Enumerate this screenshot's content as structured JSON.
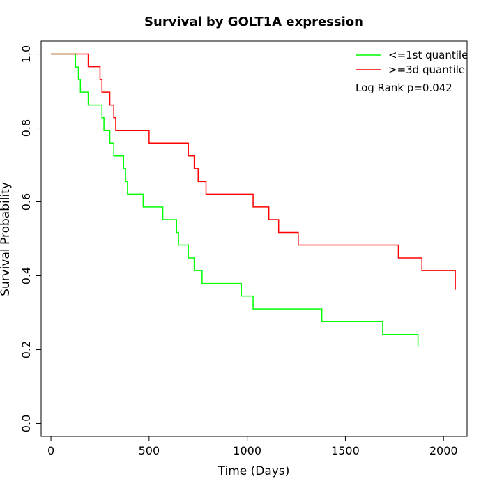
{
  "chart_data": {
    "type": "line",
    "title": "Survival by GOLT1A expression",
    "xlabel": "Time (Days)",
    "ylabel": "Survival Probability",
    "xlim": [
      -50,
      2120
    ],
    "ylim": [
      -0.035,
      1.035
    ],
    "xticks": [
      0,
      500,
      1000,
      1500,
      2000
    ],
    "xtick_labels": [
      "0",
      "500",
      "1000",
      "1500",
      "2000"
    ],
    "yticks": [
      0.0,
      0.2,
      0.4,
      0.6,
      0.8,
      1.0
    ],
    "ytick_labels": [
      "0.0",
      "0.2",
      "0.4",
      "0.6",
      "0.8",
      "1.0"
    ],
    "grid": false,
    "legend_position": "top-right",
    "annotation": "Log Rank p=0.042",
    "series": [
      {
        "name": "<=1st quantile",
        "color": "#00ff00",
        "x": [
          0,
          125,
          140,
          150,
          190,
          260,
          270,
          300,
          320,
          370,
          380,
          390,
          470,
          570,
          640,
          650,
          700,
          730,
          770,
          970,
          1030,
          1380,
          1690,
          1870
        ],
        "y": [
          1.0,
          0.965,
          0.931,
          0.897,
          0.862,
          0.828,
          0.793,
          0.759,
          0.724,
          0.69,
          0.655,
          0.621,
          0.586,
          0.552,
          0.517,
          0.483,
          0.448,
          0.414,
          0.379,
          0.345,
          0.31,
          0.276,
          0.241,
          0.207
        ]
      },
      {
        "name": ">=3d quantile",
        "color": "#ff0000",
        "x": [
          0,
          190,
          250,
          260,
          300,
          320,
          330,
          460,
          500,
          700,
          730,
          750,
          790,
          1030,
          1110,
          1160,
          1260,
          1770,
          1890,
          2060
        ],
        "y": [
          1.0,
          0.966,
          0.931,
          0.897,
          0.862,
          0.828,
          0.793,
          0.793,
          0.759,
          0.724,
          0.69,
          0.655,
          0.621,
          0.586,
          0.552,
          0.517,
          0.483,
          0.448,
          0.414,
          0.362
        ]
      }
    ]
  }
}
